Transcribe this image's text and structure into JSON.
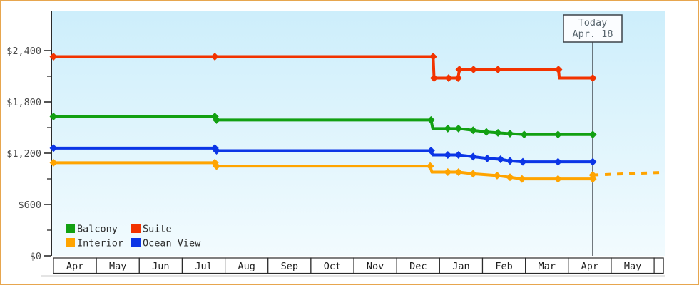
{
  "frame": {
    "border_color": "#e7a64e",
    "background": "#ffffff"
  },
  "today": {
    "label_line1": "Today",
    "label_line2": "Apr. 18",
    "month_position": 12.57
  },
  "legend": {
    "items": [
      {
        "label": "Balcony",
        "color": "#12a012"
      },
      {
        "label": "Suite",
        "color": "#f23300"
      },
      {
        "label": "Interior",
        "color": "#ffa400"
      },
      {
        "label": "Ocean View",
        "color": "#0b35e6"
      }
    ]
  },
  "chart_data": {
    "type": "line",
    "title": "",
    "xlabel": "",
    "ylabel": "",
    "x_axis": {
      "tick_labels": [
        "Apr",
        "May",
        "Jun",
        "Jul",
        "Aug",
        "Sep",
        "Oct",
        "Nov",
        "Dec",
        "Jan",
        "Feb",
        "Mar",
        "Apr",
        "May"
      ]
    },
    "y_axis": {
      "tick_values": [
        0,
        600,
        1200,
        1800,
        2400
      ],
      "tick_labels": [
        "$0",
        "$600",
        "$1,200",
        "$1,800",
        "$2,400"
      ],
      "minor_tick_values": [
        300,
        900,
        1500,
        2100
      ],
      "ylim": [
        0,
        2858
      ],
      "grid": false
    },
    "plot_background": {
      "top_color": "#cdeefb",
      "bottom_color": "#f2fbfe"
    },
    "series": [
      {
        "name": "Suite",
        "color": "#f23300",
        "points_month_value_marker": [
          [
            0,
            2329,
            1
          ],
          [
            3.76,
            2329,
            1
          ],
          [
            8.85,
            2329,
            1
          ],
          [
            8.87,
            2079,
            1
          ],
          [
            9.21,
            2079,
            1
          ],
          [
            9.43,
            2079,
            1
          ],
          [
            9.46,
            2179,
            1
          ],
          [
            9.79,
            2179,
            1
          ],
          [
            10.36,
            2179,
            1
          ],
          [
            11.77,
            2179,
            1
          ],
          [
            11.79,
            2079,
            0
          ],
          [
            12.57,
            2079,
            1
          ]
        ]
      },
      {
        "name": "Balcony",
        "color": "#12a012",
        "points_month_value_marker": [
          [
            0,
            1629,
            1
          ],
          [
            3.76,
            1629,
            1
          ],
          [
            3.8,
            1589,
            1
          ],
          [
            8.8,
            1589,
            1
          ],
          [
            8.84,
            1489,
            0
          ],
          [
            9.19,
            1489,
            1
          ],
          [
            9.44,
            1489,
            1
          ],
          [
            9.78,
            1469,
            1
          ],
          [
            10.09,
            1449,
            1
          ],
          [
            10.36,
            1439,
            1
          ],
          [
            10.64,
            1429,
            1
          ],
          [
            10.97,
            1419,
            1
          ],
          [
            11.76,
            1419,
            1
          ],
          [
            12.57,
            1419,
            1
          ]
        ]
      },
      {
        "name": "Ocean View",
        "color": "#0b35e6",
        "points_month_value_marker": [
          [
            0,
            1259,
            1
          ],
          [
            3.76,
            1259,
            1
          ],
          [
            3.8,
            1229,
            1
          ],
          [
            8.8,
            1229,
            1
          ],
          [
            8.84,
            1179,
            0
          ],
          [
            9.19,
            1179,
            1
          ],
          [
            9.44,
            1179,
            1
          ],
          [
            9.78,
            1159,
            1
          ],
          [
            10.11,
            1139,
            1
          ],
          [
            10.42,
            1129,
            1
          ],
          [
            10.64,
            1109,
            1
          ],
          [
            10.94,
            1099,
            1
          ],
          [
            11.76,
            1099,
            1
          ],
          [
            12.57,
            1099,
            1
          ]
        ]
      },
      {
        "name": "Interior",
        "color": "#ffa400",
        "points_month_value_marker": [
          [
            0,
            1089,
            1
          ],
          [
            3.76,
            1089,
            1
          ],
          [
            3.8,
            1049,
            1
          ],
          [
            8.78,
            1049,
            1
          ],
          [
            8.82,
            979,
            0
          ],
          [
            9.19,
            979,
            1
          ],
          [
            9.44,
            979,
            1
          ],
          [
            9.78,
            959,
            1
          ],
          [
            10.34,
            939,
            1
          ],
          [
            10.64,
            919,
            1
          ],
          [
            10.92,
            899,
            1
          ],
          [
            11.76,
            899,
            1
          ],
          [
            12.57,
            899,
            1
          ],
          [
            12.57,
            945,
            1
          ]
        ]
      }
    ],
    "projection": {
      "name": "Interior projection",
      "color": "#ffa400",
      "dashed": true,
      "points_month_value": [
        [
          12.57,
          945
        ],
        [
          14.15,
          975
        ]
      ]
    },
    "legend_position": "bottom-left-inside"
  }
}
